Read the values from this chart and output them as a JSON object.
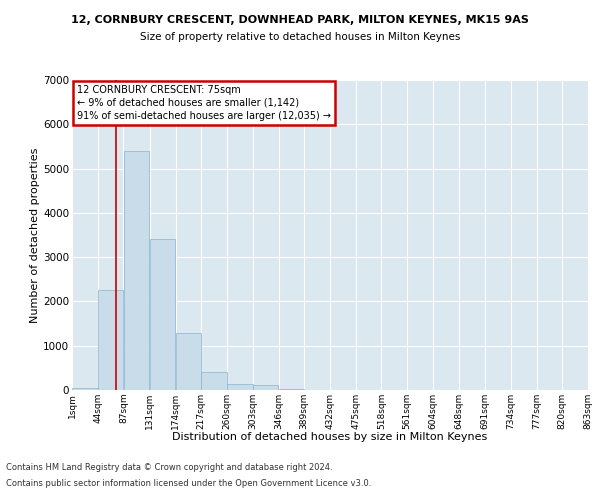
{
  "title": "12, CORNBURY CRESCENT, DOWNHEAD PARK, MILTON KEYNES, MK15 9AS",
  "subtitle": "Size of property relative to detached houses in Milton Keynes",
  "xlabel": "Distribution of detached houses by size in Milton Keynes",
  "ylabel": "Number of detached properties",
  "bar_color": "#c8dcea",
  "bar_edge_color": "#8ab4cc",
  "background_color": "#dce8f0",
  "grid_color": "white",
  "annotation_text": "12 CORNBURY CRESCENT: 75sqm\n← 9% of detached houses are smaller (1,142)\n91% of semi-detached houses are larger (12,035) →",
  "annotation_box_color": "white",
  "annotation_border_color": "#cc0000",
  "property_line_color": "#cc0000",
  "property_line_x": 75,
  "bin_starts": [
    1,
    44,
    87,
    131,
    174,
    217,
    260,
    303,
    346,
    389,
    432,
    475,
    518,
    561,
    604,
    648,
    691,
    734,
    777,
    820
  ],
  "bin_width": 43,
  "categories": [
    "1sqm",
    "44sqm",
    "87sqm",
    "131sqm",
    "174sqm",
    "217sqm",
    "260sqm",
    "303sqm",
    "346sqm",
    "389sqm",
    "432sqm",
    "475sqm",
    "518sqm",
    "561sqm",
    "604sqm",
    "648sqm",
    "691sqm",
    "734sqm",
    "777sqm",
    "820sqm",
    "863sqm"
  ],
  "values": [
    50,
    2250,
    5400,
    3400,
    1280,
    400,
    145,
    105,
    28,
    4,
    1,
    0,
    0,
    0,
    0,
    0,
    0,
    0,
    0,
    0
  ],
  "ylim": [
    0,
    7000
  ],
  "yticks": [
    0,
    1000,
    2000,
    3000,
    4000,
    5000,
    6000,
    7000
  ],
  "footnote1": "Contains HM Land Registry data © Crown copyright and database right 2024.",
  "footnote2": "Contains public sector information licensed under the Open Government Licence v3.0."
}
